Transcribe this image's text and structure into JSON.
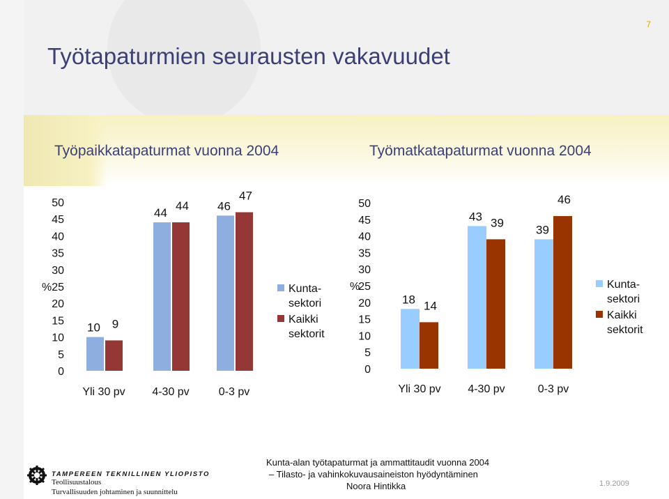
{
  "page_number": "7",
  "title": "Työtapaturmien seurausten vakavuudet",
  "subtitles": {
    "left": "Työpaikkatapaturmat vuonna 2004",
    "right": "Työmatkatapaturmat vuonna 2004"
  },
  "chart_data": [
    {
      "type": "bar",
      "title": "Työpaikkatapaturmat vuonna 2004",
      "ylabel": "%",
      "ylim": [
        0,
        50
      ],
      "yticks": [
        0,
        5,
        10,
        15,
        20,
        25,
        30,
        35,
        40,
        45,
        50
      ],
      "categories": [
        "Yli 30 pv",
        "4-30 pv",
        "0-3 pv"
      ],
      "series": [
        {
          "name": "Kunta-sektori",
          "color": "#8eaee0",
          "values": [
            10,
            44,
            46
          ]
        },
        {
          "name": "Kaikki sektorit",
          "color": "#953735",
          "values": [
            9,
            44,
            47
          ]
        }
      ],
      "legend": "right",
      "grid": false
    },
    {
      "type": "bar",
      "title": "Työmatkatapaturmat vuonna 2004",
      "ylabel": "%",
      "ylim": [
        0,
        50
      ],
      "yticks": [
        0,
        5,
        10,
        15,
        20,
        25,
        30,
        35,
        40,
        45,
        50
      ],
      "categories": [
        "Yli 30 pv",
        "4-30 pv",
        "0-3 pv"
      ],
      "series": [
        {
          "name": "Kunta-sektori",
          "color": "#99ccff",
          "values": [
            18,
            43,
            39
          ]
        },
        {
          "name": "Kaikki sektorit",
          "color": "#993300",
          "values": [
            14,
            39,
            46
          ]
        }
      ],
      "legend": "right",
      "grid": false
    }
  ],
  "footer": {
    "university": "TAMPEREEN TEKNILLINEN YLIOPISTO",
    "dept_line1": "Teollisuustalous",
    "dept_line2": "Turvallisuuden johtaminen ja suunnittelu",
    "center_lines": [
      "Kunta-alan työtapaturmat ja ammattitaudit vuonna 2004",
      "– Tilasto- ja vahinkokuvausaineiston hyödyntäminen",
      "Noora Hintikka"
    ],
    "date": "1.9.2009"
  }
}
